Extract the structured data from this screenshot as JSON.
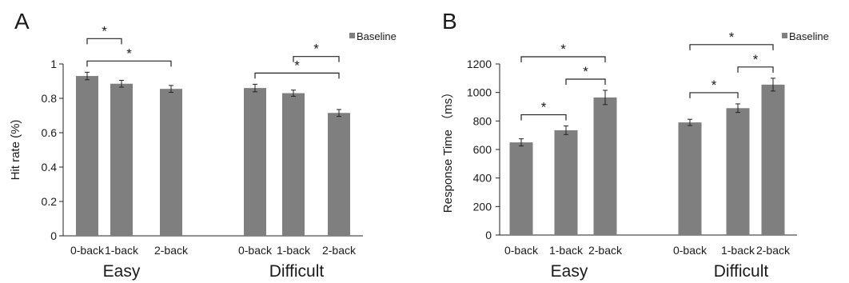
{
  "chart_data": [
    {
      "type": "bar",
      "panel_label": "A",
      "ylabel": "Hit rate (%)",
      "ylim": [
        0,
        1
      ],
      "yticks": [
        "0",
        "0.2",
        "0.4",
        "0.6",
        "0.8",
        "1"
      ],
      "groups": [
        "Easy",
        "Difficult"
      ],
      "categories": [
        "0-back",
        "1-back",
        "2-back"
      ],
      "series": [
        {
          "name": "Baseline",
          "values": [
            [
              0.93,
              0.885,
              0.855
            ],
            [
              0.86,
              0.83,
              0.715
            ]
          ],
          "errors": [
            [
              0.022,
              0.02,
              0.02
            ],
            [
              0.022,
              0.018,
              0.02
            ]
          ]
        }
      ],
      "significance": [
        {
          "group": 0,
          "from": 0,
          "to": 1,
          "level": 1,
          "label": "*"
        },
        {
          "group": 0,
          "from": 0,
          "to": 2,
          "level": 0,
          "label": "*"
        },
        {
          "group": 1,
          "from": 1,
          "to": 2,
          "level": 1,
          "label": "*"
        },
        {
          "group": 1,
          "from": 0,
          "to": 2,
          "level": 0,
          "label": "*"
        }
      ],
      "legend_position": "top-right",
      "grid": false,
      "bar_color": "#7f7f7f"
    },
    {
      "type": "bar",
      "panel_label": "B",
      "ylabel": "Response Time （ms）",
      "ylim": [
        0,
        1200
      ],
      "yticks": [
        "0",
        "200",
        "400",
        "600",
        "800",
        "1000",
        "1200"
      ],
      "groups": [
        "Easy",
        "Difficult"
      ],
      "categories": [
        "0-back",
        "1-back",
        "2-back"
      ],
      "series": [
        {
          "name": "Baseline",
          "values": [
            [
              650,
              735,
              965
            ],
            [
              790,
              890,
              1055
            ]
          ],
          "errors": [
            [
              25,
              30,
              50
            ],
            [
              22,
              30,
              45
            ]
          ]
        }
      ],
      "significance": [
        {
          "group": 0,
          "from": 0,
          "to": 1,
          "level": 0,
          "label": "*"
        },
        {
          "group": 0,
          "from": 1,
          "to": 2,
          "level": 0,
          "label": "*"
        },
        {
          "group": 0,
          "from": 0,
          "to": 2,
          "level": 1,
          "label": "*"
        },
        {
          "group": 1,
          "from": 0,
          "to": 1,
          "level": 0,
          "label": "*"
        },
        {
          "group": 1,
          "from": 1,
          "to": 2,
          "level": 0,
          "label": "*"
        },
        {
          "group": 1,
          "from": 0,
          "to": 2,
          "level": 1,
          "label": "*"
        }
      ],
      "legend_position": "top-right",
      "grid": false,
      "bar_color": "#7f7f7f"
    }
  ]
}
